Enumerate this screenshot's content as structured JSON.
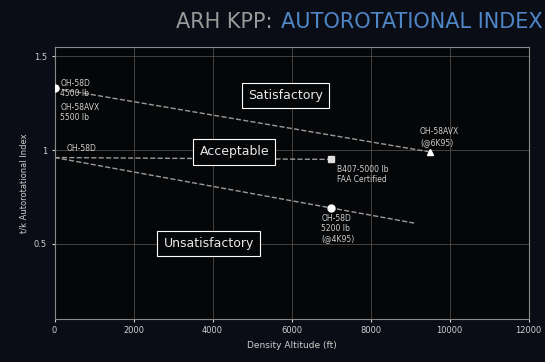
{
  "chart_data": {
    "type": "line",
    "title": "ARH KPP: AUTOROTATIONAL INDEX",
    "x_label": "Density Altitude (ft)",
    "y_label": "t/k Autorotational Index",
    "xlim": [
      0,
      12000
    ],
    "xticks": [
      0,
      2000,
      4000,
      6000,
      8000,
      10000,
      12000
    ],
    "ylim": [
      0.1,
      1.55
    ],
    "yticks": [
      0.5,
      1,
      1.5
    ],
    "grid": true,
    "series": [
      {
        "color": "#9a9a9a",
        "line_style": "dashed",
        "x": [
          0,
          9500
        ],
        "values": [
          1.33,
          0.99
        ]
      },
      {
        "color": "#9a9a9a",
        "line_style": "dashed",
        "x": [
          0,
          7000
        ],
        "values": [
          0.96,
          0.95
        ]
      },
      {
        "color": "#9a9a9a",
        "line_style": "dashed",
        "x": [
          0,
          9100
        ],
        "values": [
          0.96,
          0.61
        ]
      }
    ],
    "points": [
      {
        "x": 0,
        "y": 1.33,
        "marker": "circle",
        "color": "#ffffff"
      },
      {
        "x": 9500,
        "y": 0.99,
        "marker": "triangle",
        "color": "#ffffff"
      },
      {
        "x": 7000,
        "y": 0.95,
        "marker": "square",
        "color": "#e0e0e0"
      },
      {
        "x": 7000,
        "y": 0.69,
        "marker": "circle",
        "color": "#ffffff"
      }
    ],
    "annotations": [
      {
        "text": "OH-58D\n4500 lb",
        "x": 150,
        "y": 1.33
      },
      {
        "text": "OH-58AVX\n5500 lb",
        "x": 150,
        "y": 1.2
      },
      {
        "text": "OH-58D",
        "x": 300,
        "y": 1.01
      },
      {
        "text": "B407-5000 lb\nFAA Certified",
        "x": 7150,
        "y": 0.87
      },
      {
        "text": "OH-58D\n5200 lb\n(@4K95)",
        "x": 6750,
        "y": 0.58
      },
      {
        "text": "OH-58AVX\n(@6K95)",
        "x": 9250,
        "y": 1.07
      }
    ],
    "regions": [
      {
        "text": "Satisfactory",
        "x": 5850,
        "y": 1.29
      },
      {
        "text": "Acceptable",
        "x": 4550,
        "y": 0.99
      },
      {
        "text": "Unsatisfactory",
        "x": 3900,
        "y": 0.5
      }
    ]
  }
}
